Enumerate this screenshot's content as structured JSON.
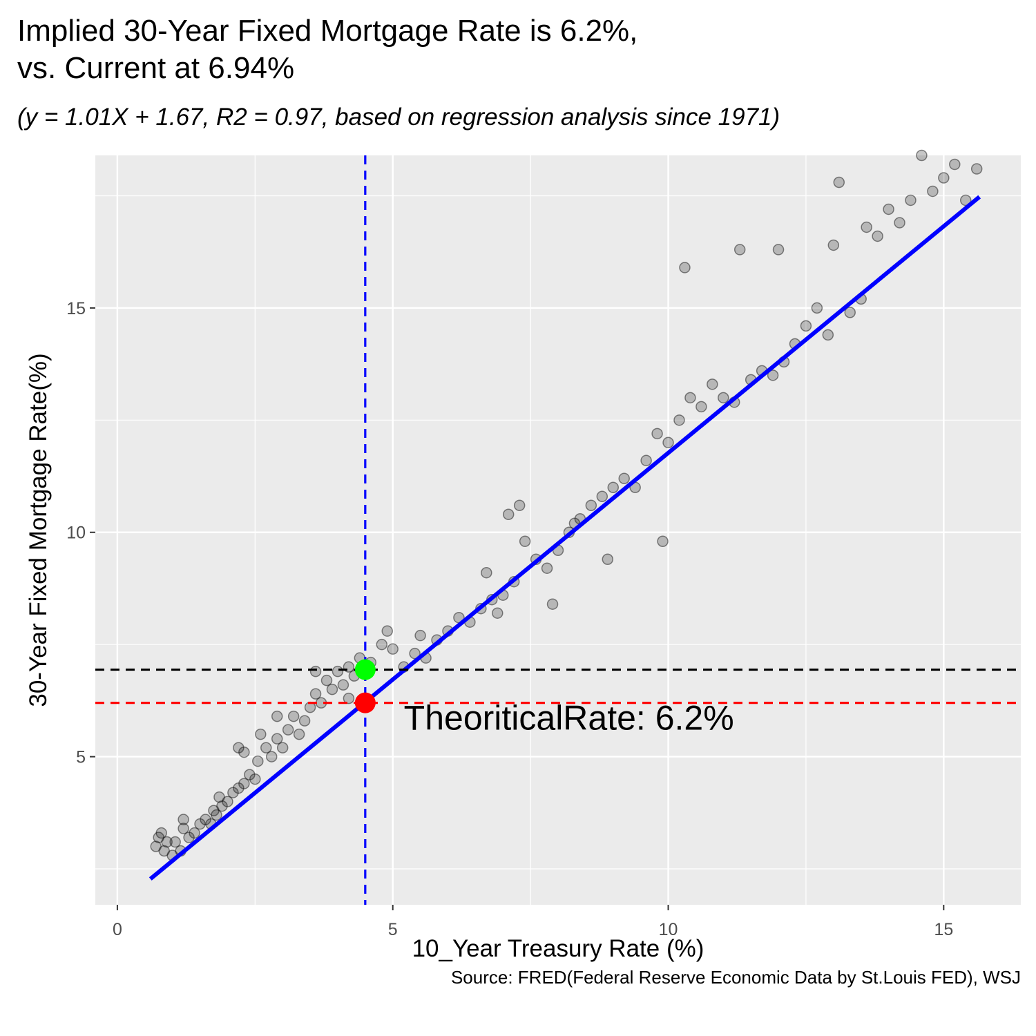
{
  "title": "Implied 30-Year Fixed Mortgage Rate is 6.2%,\nvs. Current at 6.94%",
  "subtitle": "(y = 1.01X + 1.67, R2 = 0.97, based on regression analysis since 1971)",
  "caption": "Source: FRED(Federal Reserve Economic Data by St.Louis FED), WSJ",
  "chart_data": {
    "type": "scatter",
    "xlabel": "10_Year Treasury Rate (%)",
    "ylabel": "30-Year Fixed Mortgage Rate(%)",
    "xlim": [
      -0.4,
      16.4
    ],
    "ylim": [
      1.7,
      18.4
    ],
    "x_ticks": [
      0,
      5,
      10,
      15
    ],
    "y_ticks": [
      5,
      10,
      15
    ],
    "grid": true,
    "background": "#ebebeb",
    "regression": {
      "slope": 1.01,
      "intercept": 1.67,
      "x_range": [
        0.6,
        15.65
      ],
      "color": "#0000ff"
    },
    "current_treasury": 4.5,
    "current_rate": 6.94,
    "theoretical_rate": 6.2,
    "annotation": {
      "text": "TheoriticalRate: 6.2%",
      "x": 5.2,
      "y": 5.6
    },
    "colors": {
      "points": "#000000",
      "current_point": "#00ff00",
      "theoretical_point": "#ff0000",
      "vline": "#0000ff",
      "hline_current": "#000000",
      "hline_theoretical": "#ff0000"
    },
    "points": [
      [
        0.7,
        3.0
      ],
      [
        0.75,
        3.2
      ],
      [
        0.8,
        3.3
      ],
      [
        0.85,
        2.9
      ],
      [
        0.9,
        3.1
      ],
      [
        1.0,
        2.8
      ],
      [
        1.05,
        3.1
      ],
      [
        1.15,
        2.9
      ],
      [
        1.2,
        3.4
      ],
      [
        1.3,
        3.2
      ],
      [
        1.4,
        3.3
      ],
      [
        1.5,
        3.5
      ],
      [
        1.6,
        3.6
      ],
      [
        1.7,
        3.5
      ],
      [
        1.75,
        3.8
      ],
      [
        1.8,
        3.7
      ],
      [
        1.85,
        4.1
      ],
      [
        1.9,
        3.9
      ],
      [
        2.0,
        4.0
      ],
      [
        2.1,
        4.2
      ],
      [
        2.2,
        4.3
      ],
      [
        2.2,
        5.2
      ],
      [
        2.3,
        5.1
      ],
      [
        2.4,
        4.6
      ],
      [
        2.5,
        4.5
      ],
      [
        2.55,
        4.9
      ],
      [
        2.6,
        5.5
      ],
      [
        2.7,
        5.2
      ],
      [
        2.8,
        5.0
      ],
      [
        2.9,
        5.4
      ],
      [
        3.0,
        5.2
      ],
      [
        3.1,
        5.6
      ],
      [
        3.2,
        5.9
      ],
      [
        3.3,
        5.5
      ],
      [
        3.4,
        5.8
      ],
      [
        3.5,
        6.1
      ],
      [
        3.6,
        6.4
      ],
      [
        3.7,
        6.2
      ],
      [
        3.8,
        6.7
      ],
      [
        3.9,
        6.5
      ],
      [
        4.0,
        6.9
      ],
      [
        4.1,
        6.6
      ],
      [
        4.2,
        7.0
      ],
      [
        4.3,
        6.8
      ],
      [
        4.4,
        7.2
      ],
      [
        4.6,
        7.1
      ],
      [
        4.8,
        7.5
      ],
      [
        5.0,
        7.4
      ],
      [
        5.2,
        7.0
      ],
      [
        5.4,
        7.3
      ],
      [
        5.6,
        7.2
      ],
      [
        5.8,
        7.6
      ],
      [
        6.0,
        7.8
      ],
      [
        6.2,
        8.1
      ],
      [
        6.4,
        8.0
      ],
      [
        6.6,
        8.3
      ],
      [
        6.8,
        8.5
      ],
      [
        7.0,
        8.6
      ],
      [
        7.2,
        8.9
      ],
      [
        7.1,
        10.4
      ],
      [
        7.3,
        10.6
      ],
      [
        7.4,
        9.8
      ],
      [
        7.6,
        9.4
      ],
      [
        7.8,
        9.2
      ],
      [
        8.0,
        9.6
      ],
      [
        8.2,
        10.0
      ],
      [
        8.4,
        10.3
      ],
      [
        8.6,
        10.6
      ],
      [
        8.8,
        10.8
      ],
      [
        9.0,
        11.0
      ],
      [
        9.2,
        11.2
      ],
      [
        9.4,
        11.0
      ],
      [
        9.6,
        11.6
      ],
      [
        9.8,
        12.2
      ],
      [
        10.0,
        12.0
      ],
      [
        10.2,
        12.5
      ],
      [
        10.3,
        15.9
      ],
      [
        10.4,
        13.0
      ],
      [
        10.6,
        12.8
      ],
      [
        10.8,
        13.3
      ],
      [
        11.0,
        13.0
      ],
      [
        11.2,
        12.9
      ],
      [
        11.3,
        16.3
      ],
      [
        11.5,
        13.4
      ],
      [
        11.7,
        13.6
      ],
      [
        11.9,
        13.5
      ],
      [
        12.0,
        16.3
      ],
      [
        12.1,
        13.8
      ],
      [
        12.3,
        14.2
      ],
      [
        12.5,
        14.6
      ],
      [
        12.7,
        15.0
      ],
      [
        12.9,
        14.4
      ],
      [
        13.0,
        16.4
      ],
      [
        13.1,
        17.8
      ],
      [
        13.3,
        14.9
      ],
      [
        13.5,
        15.2
      ],
      [
        13.6,
        16.8
      ],
      [
        13.8,
        16.6
      ],
      [
        14.0,
        17.2
      ],
      [
        14.2,
        16.9
      ],
      [
        14.4,
        17.4
      ],
      [
        14.6,
        18.4
      ],
      [
        14.8,
        17.6
      ],
      [
        15.0,
        17.9
      ],
      [
        15.2,
        18.2
      ],
      [
        15.4,
        17.4
      ],
      [
        15.6,
        18.1
      ],
      [
        9.9,
        9.8
      ],
      [
        8.9,
        9.4
      ],
      [
        7.9,
        8.4
      ],
      [
        6.7,
        9.1
      ],
      [
        5.5,
        7.7
      ],
      [
        4.9,
        7.8
      ],
      [
        3.6,
        6.9
      ],
      [
        2.9,
        5.9
      ],
      [
        1.2,
        3.6
      ],
      [
        2.3,
        4.4
      ],
      [
        4.2,
        6.3
      ],
      [
        6.9,
        8.2
      ],
      [
        8.3,
        10.2
      ]
    ]
  }
}
